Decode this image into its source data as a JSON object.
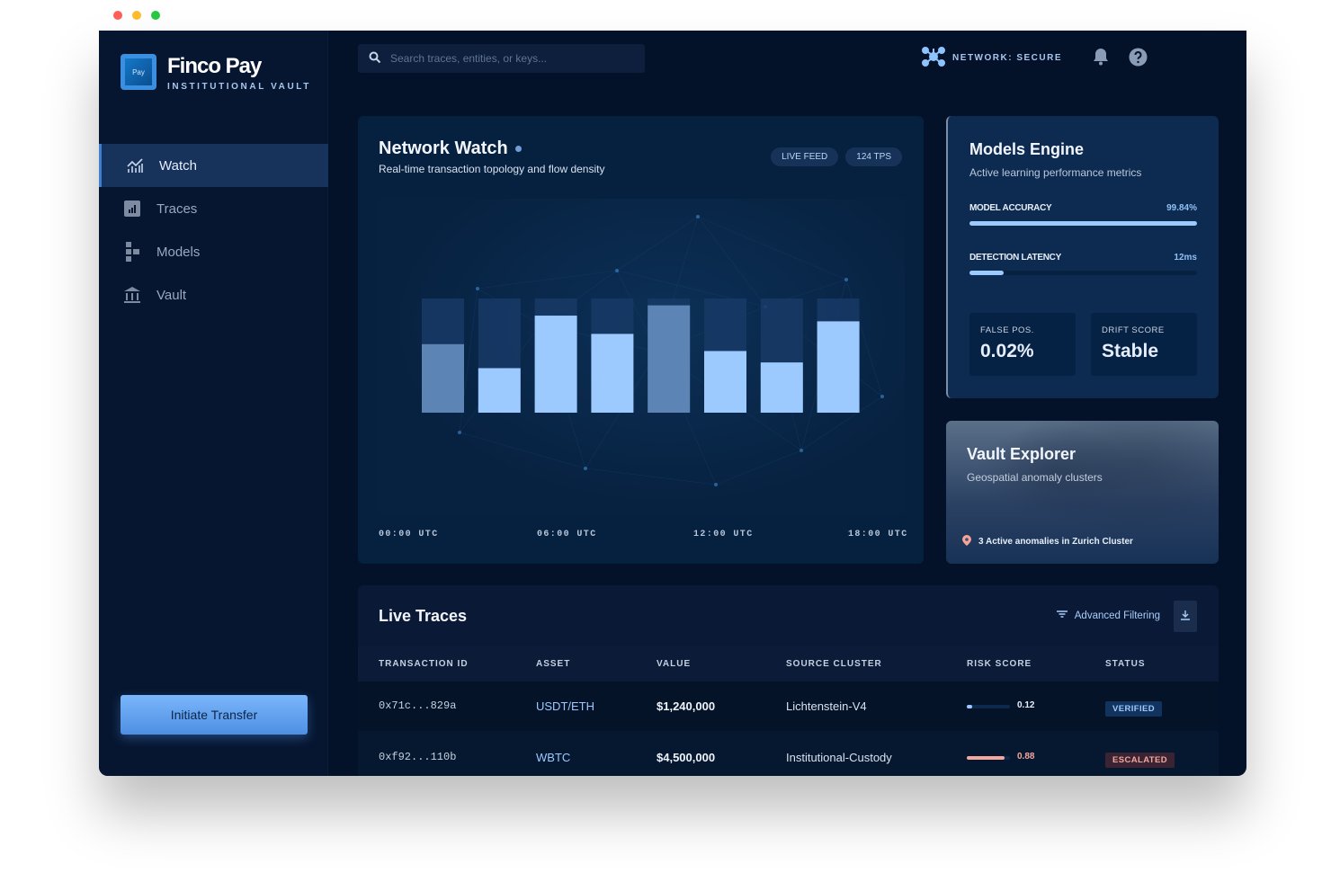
{
  "window": {
    "controls": [
      "close",
      "minimize",
      "maximize"
    ]
  },
  "brand": {
    "name": "Finco Pay",
    "subtitle": "INSTITUTIONAL VAULT",
    "logo_text": "Pay"
  },
  "sidebar": {
    "items": [
      {
        "label": "Watch",
        "icon": "chart-line-icon",
        "active": true
      },
      {
        "label": "Traces",
        "icon": "bar-chart-icon"
      },
      {
        "label": "Models",
        "icon": "hierarchy-icon"
      },
      {
        "label": "Vault",
        "icon": "bank-icon"
      }
    ],
    "cta": "Initiate Transfer"
  },
  "header": {
    "search_placeholder": "Search traces, entities, or keys...",
    "network_status": "NETWORK: SECURE"
  },
  "network_watch": {
    "title": "Network Watch",
    "subtitle": "Real-time transaction topology and flow density",
    "badges": [
      "LIVE FEED",
      "124 TPS"
    ],
    "chart_data": {
      "type": "bar",
      "x_ticks": [
        "00:00 UTC",
        "06:00 UTC",
        "12:00 UTC",
        "18:00 UTC"
      ],
      "values": [
        0.6,
        0.39,
        0.85,
        0.69,
        0.94,
        0.54,
        0.44,
        0.8
      ],
      "highlight": [
        true,
        false,
        false,
        false,
        true,
        false,
        false,
        false
      ],
      "ylim": [
        0,
        1
      ],
      "colors": {
        "fill": "#9ccaff",
        "muted": "#5c85b5",
        "track": "#173a66"
      }
    }
  },
  "models_engine": {
    "title": "Models Engine",
    "subtitle": "Active learning performance metrics",
    "metrics": [
      {
        "label": "MODEL ACCURACY",
        "value": "99.84%",
        "fill": 0.9984
      },
      {
        "label": "DETECTION LATENCY",
        "value": "12ms",
        "fill": 0.15
      }
    ],
    "stats": [
      {
        "label": "FALSE POS.",
        "value": "0.02%"
      },
      {
        "label": "DRIFT SCORE",
        "value": "Stable"
      }
    ]
  },
  "vault_explorer": {
    "title": "Vault Explorer",
    "subtitle": "Geospatial anomaly clusters",
    "alert": "3 Active anomalies in Zurich Cluster"
  },
  "live_traces": {
    "title": "Live Traces",
    "filter_label": "Advanced Filtering",
    "columns": [
      "TRANSACTION ID",
      "ASSET",
      "VALUE",
      "SOURCE CLUSTER",
      "RISK SCORE",
      "STATUS"
    ],
    "rows": [
      {
        "id": "0x71c...829a",
        "asset": "USDT/ETH",
        "value": "$1,240,000",
        "cluster": "Lichtenstein-V4",
        "risk": "0.12",
        "risk_fill": 0.12,
        "status": "VERIFIED"
      },
      {
        "id": "0xf92...110b",
        "asset": "WBTC",
        "value": "$4,500,000",
        "cluster": "Institutional-Custody",
        "risk": "0.88",
        "risk_fill": 0.88,
        "status": "ESCALATED"
      }
    ]
  },
  "colors": {
    "accent": "#9ccaff",
    "danger": "#f4a79c",
    "bg": "#031129"
  }
}
